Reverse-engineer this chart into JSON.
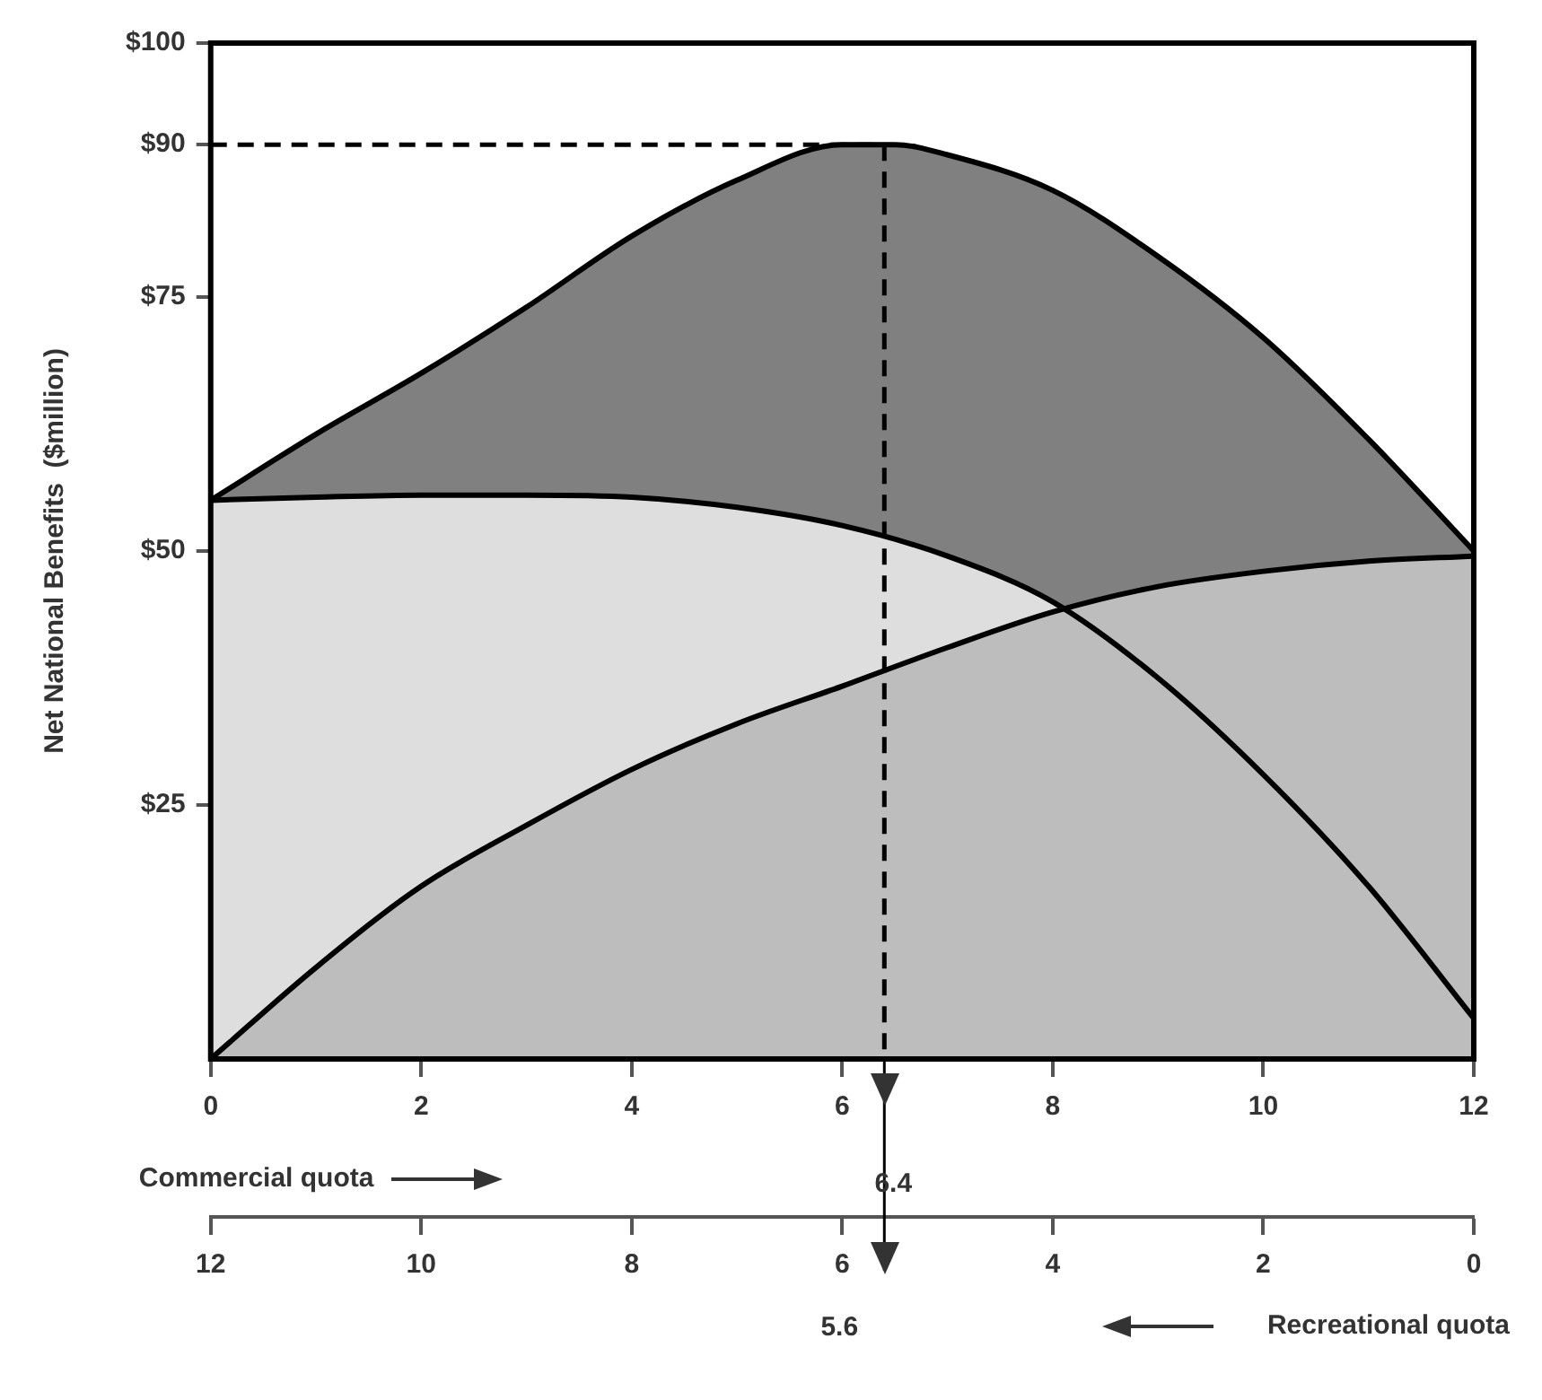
{
  "chart_data": {
    "type": "area",
    "xlabel": "Commercial quota",
    "x2label": "Recreational quota",
    "ylabel": "Net National Benefits  ($million)",
    "series": [
      {
        "color": "#808080",
        "x": [
          0,
          1,
          2,
          3,
          4,
          5,
          6,
          6.5,
          7,
          8,
          9,
          10,
          11,
          12
        ],
        "values": [
          55,
          61.5,
          67.5,
          74,
          81,
          86.5,
          90,
          90,
          89,
          85.5,
          79,
          71,
          61,
          50
        ]
      },
      {
        "color": "#dedede",
        "x": [
          0,
          1,
          2,
          3,
          4,
          5,
          6,
          7,
          8,
          9,
          10,
          11,
          12
        ],
        "values": [
          55,
          55.3,
          55.5,
          55.5,
          55.3,
          54.3,
          52.5,
          49.5,
          45,
          37.5,
          28,
          17,
          4
        ]
      },
      {
        "color": "#bdbdbd",
        "x": [
          0,
          1,
          2,
          3,
          4,
          5,
          6,
          7,
          8,
          9,
          10,
          11,
          12
        ],
        "values": [
          0,
          9,
          17,
          23,
          28.5,
          33,
          36.7,
          40.5,
          44,
          46.5,
          48,
          49,
          49.5
        ]
      }
    ],
    "xlim": [
      0,
      12
    ],
    "xticks": [
      0,
      2,
      4,
      6,
      8,
      10,
      12
    ],
    "x2lim": [
      12,
      0
    ],
    "x2ticks": [
      12,
      10,
      8,
      6,
      4,
      2,
      0
    ],
    "ylim": [
      0,
      100
    ],
    "yticks": [
      {
        "value": 25,
        "label": "$25"
      },
      {
        "value": 50,
        "label": "$50"
      },
      {
        "value": 75,
        "label": "$75"
      },
      {
        "value": 90,
        "label": "$90"
      },
      {
        "value": 100,
        "label": "$100"
      }
    ],
    "ref_lines": [
      {
        "axis": "y",
        "value": 90,
        "color": "#000000",
        "line_style": "dashed"
      },
      {
        "axis": "x",
        "value": 6.4,
        "color": "#000000",
        "line_style": "dashed"
      }
    ],
    "annotations": [
      "6.4",
      "5.6"
    ],
    "grid": false,
    "legend": false,
    "marker": "none"
  }
}
